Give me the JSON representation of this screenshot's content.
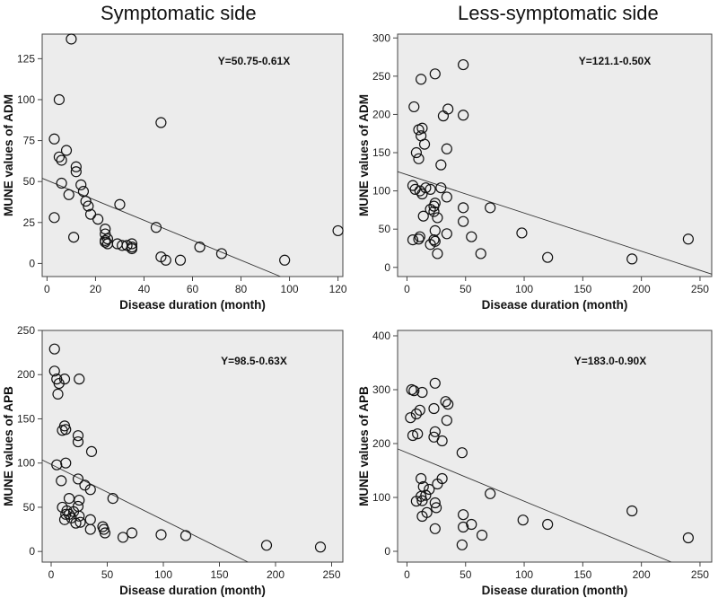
{
  "titles": {
    "left": "Symptomatic side",
    "right": "Less-symptomatic side"
  },
  "chart_data": [
    {
      "type": "scatter",
      "id": "sym-adm",
      "xlabel": "Disease duration (month)",
      "ylabel": "MUNE values of ADM",
      "xlim": [
        -2,
        122
      ],
      "ylim": [
        -8,
        140
      ],
      "xticks": [
        0,
        20,
        40,
        60,
        80,
        100,
        120
      ],
      "yticks": [
        0,
        25,
        50,
        75,
        100,
        125
      ],
      "equation": "Y=50.75-0.61X",
      "fit": {
        "intercept": 50.75,
        "slope": -0.61
      },
      "points": [
        [
          10,
          137
        ],
        [
          5,
          100
        ],
        [
          47,
          86
        ],
        [
          3,
          76
        ],
        [
          8,
          69
        ],
        [
          5,
          65
        ],
        [
          6,
          63
        ],
        [
          12,
          59
        ],
        [
          12,
          56
        ],
        [
          6,
          49
        ],
        [
          14,
          48
        ],
        [
          15,
          44
        ],
        [
          9,
          42
        ],
        [
          16,
          38
        ],
        [
          17,
          35
        ],
        [
          3,
          28
        ],
        [
          18,
          30
        ],
        [
          21,
          27
        ],
        [
          11,
          16
        ],
        [
          24,
          21
        ],
        [
          24,
          18
        ],
        [
          25,
          15
        ],
        [
          24,
          14
        ],
        [
          24,
          13
        ],
        [
          25,
          12
        ],
        [
          29,
          12
        ],
        [
          31,
          11
        ],
        [
          33,
          11
        ],
        [
          35,
          12
        ],
        [
          35,
          10
        ],
        [
          35,
          9
        ],
        [
          30,
          36
        ],
        [
          45,
          22
        ],
        [
          47,
          4
        ],
        [
          49,
          2
        ],
        [
          55,
          2
        ],
        [
          63,
          10
        ],
        [
          72,
          6
        ],
        [
          98,
          2
        ],
        [
          120,
          20
        ]
      ]
    },
    {
      "type": "scatter",
      "id": "less-adm",
      "xlabel": "Disease duration (month)",
      "ylabel": "MUNE values of ADM",
      "xlim": [
        -8,
        260
      ],
      "ylim": [
        -12,
        305
      ],
      "xticks": [
        0,
        50,
        100,
        150,
        200,
        250
      ],
      "yticks": [
        0,
        50,
        100,
        150,
        200,
        250,
        300
      ],
      "equation": "Y=121.1-0.50X",
      "fit": {
        "intercept": 121.1,
        "slope": -0.5
      },
      "points": [
        [
          48,
          265
        ],
        [
          12,
          246
        ],
        [
          24,
          253
        ],
        [
          6,
          210
        ],
        [
          35,
          207
        ],
        [
          31,
          198
        ],
        [
          48,
          199
        ],
        [
          10,
          180
        ],
        [
          13,
          182
        ],
        [
          12,
          172
        ],
        [
          15,
          161
        ],
        [
          34,
          155
        ],
        [
          8,
          150
        ],
        [
          10,
          142
        ],
        [
          29,
          134
        ],
        [
          5,
          107
        ],
        [
          7,
          102
        ],
        [
          11,
          100
        ],
        [
          13,
          96
        ],
        [
          16,
          104
        ],
        [
          20,
          102
        ],
        [
          29,
          104
        ],
        [
          34,
          92
        ],
        [
          24,
          84
        ],
        [
          20,
          76
        ],
        [
          23,
          80
        ],
        [
          23,
          73
        ],
        [
          48,
          78
        ],
        [
          71,
          78
        ],
        [
          14,
          67
        ],
        [
          26,
          65
        ],
        [
          48,
          60
        ],
        [
          5,
          36
        ],
        [
          10,
          37
        ],
        [
          11,
          40
        ],
        [
          20,
          30
        ],
        [
          24,
          48
        ],
        [
          23,
          36
        ],
        [
          24,
          34
        ],
        [
          34,
          44
        ],
        [
          55,
          40
        ],
        [
          26,
          18
        ],
        [
          63,
          18
        ],
        [
          98,
          45
        ],
        [
          120,
          13
        ],
        [
          192,
          11
        ],
        [
          240,
          37
        ]
      ]
    },
    {
      "type": "scatter",
      "id": "sym-apb",
      "xlabel": "Disease duration (month)",
      "ylabel": "MUNE values of APB",
      "xlim": [
        -8,
        260
      ],
      "ylim": [
        -12,
        250
      ],
      "xticks": [
        0,
        50,
        100,
        150,
        200,
        250
      ],
      "yticks": [
        0,
        50,
        100,
        150,
        200,
        250
      ],
      "equation": "Y=98.5-0.63X",
      "fit": {
        "intercept": 98.5,
        "slope": -0.63
      },
      "points": [
        [
          3,
          229
        ],
        [
          3,
          204
        ],
        [
          5,
          195
        ],
        [
          12,
          195
        ],
        [
          25,
          195
        ],
        [
          7,
          190
        ],
        [
          6,
          178
        ],
        [
          12,
          142
        ],
        [
          13,
          138
        ],
        [
          10,
          137
        ],
        [
          24,
          131
        ],
        [
          24,
          124
        ],
        [
          36,
          113
        ],
        [
          5,
          98
        ],
        [
          13,
          100
        ],
        [
          24,
          82
        ],
        [
          30,
          75
        ],
        [
          35,
          70
        ],
        [
          9,
          80
        ],
        [
          10,
          50
        ],
        [
          14,
          46
        ],
        [
          13,
          42
        ],
        [
          16,
          42
        ],
        [
          18,
          38
        ],
        [
          25,
          58
        ],
        [
          24,
          51
        ],
        [
          20,
          45
        ],
        [
          25,
          40
        ],
        [
          16,
          60
        ],
        [
          12,
          36
        ],
        [
          22,
          32
        ],
        [
          26,
          33
        ],
        [
          35,
          36
        ],
        [
          35,
          25
        ],
        [
          55,
          60
        ],
        [
          46,
          28
        ],
        [
          47,
          25
        ],
        [
          48,
          21
        ],
        [
          64,
          16
        ],
        [
          72,
          21
        ],
        [
          98,
          19
        ],
        [
          120,
          18
        ],
        [
          192,
          7
        ],
        [
          240,
          5
        ]
      ]
    },
    {
      "type": "scatter",
      "id": "less-apb",
      "xlabel": "Disease duration (month)",
      "ylabel": "MUNE values of APB",
      "xlim": [
        -8,
        260
      ],
      "ylim": [
        -20,
        410
      ],
      "xticks": [
        0,
        50,
        100,
        150,
        200,
        250
      ],
      "yticks": [
        0,
        100,
        200,
        300,
        400
      ],
      "equation": "Y=183.0-0.90X",
      "fit": {
        "intercept": 183.0,
        "slope": -0.9
      },
      "points": [
        [
          4,
          300
        ],
        [
          6,
          298
        ],
        [
          13,
          295
        ],
        [
          24,
          312
        ],
        [
          33,
          278
        ],
        [
          35,
          273
        ],
        [
          23,
          265
        ],
        [
          11,
          262
        ],
        [
          34,
          243
        ],
        [
          8,
          255
        ],
        [
          3,
          248
        ],
        [
          24,
          222
        ],
        [
          30,
          205
        ],
        [
          5,
          215
        ],
        [
          9,
          218
        ],
        [
          23,
          212
        ],
        [
          47,
          183
        ],
        [
          12,
          135
        ],
        [
          30,
          135
        ],
        [
          26,
          125
        ],
        [
          14,
          120
        ],
        [
          19,
          115
        ],
        [
          16,
          104
        ],
        [
          12,
          102
        ],
        [
          13,
          94
        ],
        [
          8,
          93
        ],
        [
          24,
          90
        ],
        [
          25,
          81
        ],
        [
          71,
          107
        ],
        [
          17,
          72
        ],
        [
          13,
          65
        ],
        [
          24,
          42
        ],
        [
          48,
          45
        ],
        [
          48,
          68
        ],
        [
          55,
          50
        ],
        [
          64,
          30
        ],
        [
          99,
          58
        ],
        [
          120,
          50
        ],
        [
          192,
          75
        ],
        [
          240,
          25
        ],
        [
          47,
          12
        ]
      ]
    }
  ]
}
